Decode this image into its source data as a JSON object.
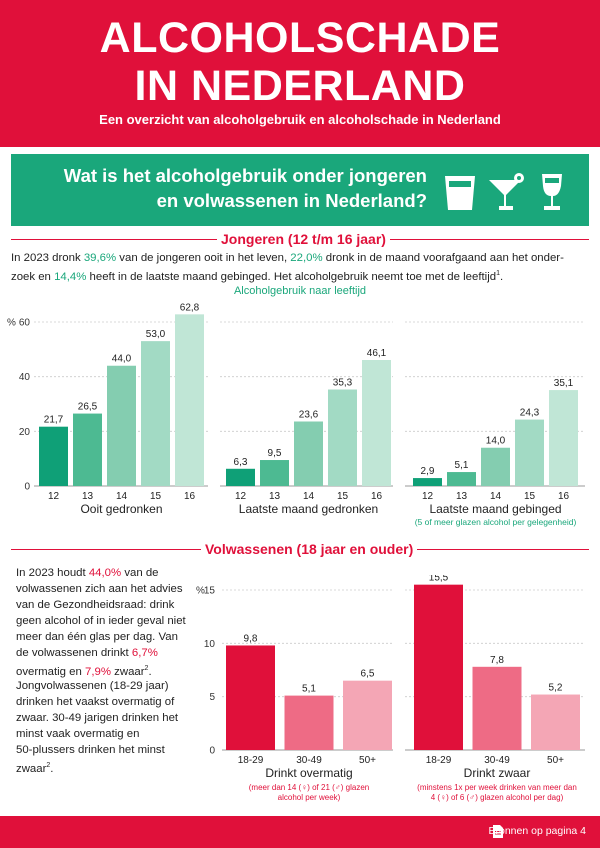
{
  "header": {
    "title_line1": "ALCOHOLSCHADE",
    "title_line2": "IN NEDERLAND",
    "subtitle": "Een overzicht van alcoholgebruik en alcoholschade in Nederland"
  },
  "banner": {
    "question_line1": "Wat is het alcoholgebruik onder jongeren",
    "question_line2": "en volwassenen in Nederland?",
    "icons": [
      "glass-icon",
      "cocktail-icon",
      "wine-glass-icon"
    ]
  },
  "youth": {
    "section_title": "Jongeren (12 t/m 16 jaar)",
    "p_1": "In 2023 dronk ",
    "v_1": "39,6%",
    "p_2": " van de jongeren ooit in het leven, ",
    "v_2": "22,0%",
    "p_3": " dronk in de maand voorafgaand aan het onder-",
    "p_4": "zoek en ",
    "v_3": "14,4%",
    "p_5": " heeft in de laatste maand gebinged. Het alcoholgebruik neemt toe met de leeftijd",
    "p_sup": "1",
    "p_end": ".",
    "chart_subtitle": "Alcoholgebruik naar leeftijd"
  },
  "adults": {
    "section_title": "Volwassenen (18 jaar en ouder)",
    "a_l1_pre": "In 2023 houdt ",
    "a_l1_val": "44,0%",
    "a_l1_post": " van de",
    "a_l2": "volwassenen zich aan het advies",
    "a_l3": "van de Gezondheidsraad: drink",
    "a_l4": "geen alcohol of in ieder geval niet",
    "a_l5": "meer dan één glas per dag. Van",
    "a_l6_pre": "de volwassenen drinkt ",
    "a_l6_val": "6,7%",
    "a_l7_val": "7,9%",
    "a_l7_pre": "overmatig en ",
    "a_l7_post": " zwaar",
    "a_l7_sup": "2",
    "a_l7_end": ".",
    "b_l1": "Jongvolwassenen (18-29 jaar)",
    "b_l2": "drinken het vaakst overmatig of",
    "b_l3": "zwaar. 30-49 jarigen drinken het",
    "b_l4": "minst vaak overmatig en",
    "b_l5": "50-plussers drinken het minst",
    "b_l6": "zwaar",
    "b_sup": "2",
    "b_end": "."
  },
  "footer": {
    "source_text": "Bronnen op pagina 4",
    "icon": "document-icon"
  },
  "colors": {
    "red": "#e0103a",
    "green": "#1aa77b",
    "green_shades": [
      "#0fa077",
      "#4dba92",
      "#84cdb0",
      "#a2dac4",
      "#c0e6d6"
    ],
    "red_shades": [
      "#e0103a",
      "#ee6b85",
      "#f4a6b5"
    ]
  },
  "chart_data": [
    {
      "type": "bar",
      "title": "Ooit gedronken",
      "note": "",
      "ylabel": "%",
      "categories": [
        "12",
        "13",
        "14",
        "15",
        "16"
      ],
      "values": [
        21.7,
        26.5,
        44.0,
        53.0,
        62.8
      ],
      "labels": [
        "21,7",
        "26,5",
        "44,0",
        "53,0",
        "62,8"
      ],
      "ylim": [
        0,
        60
      ],
      "yticks": [
        0,
        20,
        40,
        60
      ],
      "ytick_labels": [
        "0",
        "20",
        "40",
        "60"
      ],
      "grid": true
    },
    {
      "type": "bar",
      "title": "Laatste maand gedronken",
      "note": "",
      "categories": [
        "12",
        "13",
        "14",
        "15",
        "16"
      ],
      "values": [
        6.3,
        9.5,
        23.6,
        35.3,
        46.1
      ],
      "labels": [
        "6,3",
        "9,5",
        "23,6",
        "35,3",
        "46,1"
      ],
      "ylim": [
        0,
        60
      ],
      "grid": true
    },
    {
      "type": "bar",
      "title": "Laatste maand gebinged",
      "note": "(5 of meer glazen alcohol per gelegenheid)",
      "categories": [
        "12",
        "13",
        "14",
        "15",
        "16"
      ],
      "values": [
        2.9,
        5.1,
        14.0,
        24.3,
        35.1
      ],
      "labels": [
        "2,9",
        "5,1",
        "14,0",
        "24,3",
        "35,1"
      ],
      "ylim": [
        0,
        60
      ],
      "grid": true
    },
    {
      "type": "bar",
      "title": "Drinkt overmatig",
      "note_line1": "(meer dan 14 (♀) of 21 (♂) glazen",
      "note_line2": "alcohol per week)",
      "ylabel": "%",
      "categories": [
        "18-29",
        "30-49",
        "50+"
      ],
      "values": [
        9.8,
        5.1,
        6.5
      ],
      "labels": [
        "9,8",
        "5,1",
        "6,5"
      ],
      "ylim": [
        0,
        15
      ],
      "yticks": [
        0,
        5,
        10,
        15
      ],
      "ytick_labels": [
        "0",
        "5",
        "10",
        "15"
      ],
      "grid": true
    },
    {
      "type": "bar",
      "title": "Drinkt zwaar",
      "note_line1": "(minstens 1x per week drinken van meer dan",
      "note_line2": "4 (♀) of 6 (♂) glazen alcohol per dag)",
      "categories": [
        "18-29",
        "30-49",
        "50+"
      ],
      "values": [
        15.5,
        7.8,
        5.2
      ],
      "labels": [
        "15,5",
        "7,8",
        "5,2"
      ],
      "ylim": [
        0,
        15
      ],
      "grid": true
    }
  ]
}
